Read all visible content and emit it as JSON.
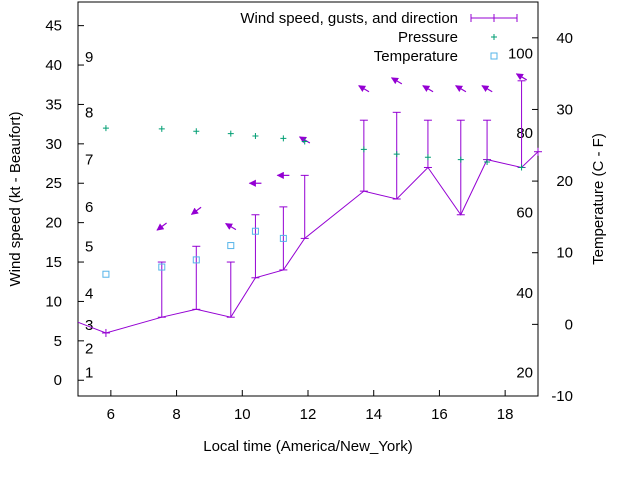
{
  "chart_data": {
    "type": "line",
    "xlabel": "Local time (America/New_York)",
    "ylabel_left": "Wind speed (kt - Beaufort)",
    "ylabel_right": "Temperature (C - F)",
    "xlim": [
      5,
      19
    ],
    "ylim_left": [
      -2,
      48
    ],
    "ylim_right": [
      -10,
      45
    ],
    "x_ticks": [
      6,
      8,
      10,
      12,
      14,
      16,
      18
    ],
    "y_left_ticks": [
      0,
      5,
      10,
      15,
      20,
      25,
      30,
      35,
      40,
      45
    ],
    "y_right_ticks": [
      -10,
      0,
      10,
      20,
      30,
      40
    ],
    "beaufort_labels": [
      {
        "text": "1",
        "at": 1
      },
      {
        "text": "2",
        "at": 4
      },
      {
        "text": "3",
        "at": 7
      },
      {
        "text": "4",
        "at": 11
      },
      {
        "text": "5",
        "at": 17
      },
      {
        "text": "6",
        "at": 22
      },
      {
        "text": "7",
        "at": 28
      },
      {
        "text": "8",
        "at": 34
      },
      {
        "text": "9",
        "at": 41
      }
    ],
    "fahrenheit_labels": [
      {
        "text": "20",
        "at": -6.7
      },
      {
        "text": "40",
        "at": 4.4
      },
      {
        "text": "60",
        "at": 15.6
      },
      {
        "text": "80",
        "at": 26.7
      },
      {
        "text": "100",
        "at": 37.8
      }
    ],
    "legend": [
      "Wind speed, gusts, and direction",
      "Pressure",
      "Temperature"
    ],
    "legend_position": "top-right",
    "grid": false,
    "colors": {
      "wind": "#9400d3",
      "pressure": "#009e73",
      "temperature": "#56b4e9"
    },
    "series": [
      {
        "name": "Wind speed, gusts, and direction",
        "x": [
          4.6,
          5.85,
          7.55,
          8.6,
          9.65,
          10.4,
          11.25,
          11.9,
          13.7,
          14.7,
          15.65,
          16.65,
          17.45,
          18.5,
          19.0
        ],
        "values": [
          8,
          6,
          8,
          9,
          8,
          13,
          14,
          18,
          24,
          23,
          27,
          21,
          28,
          27,
          29
        ],
        "gusts": [
          null,
          null,
          15,
          17,
          15,
          21,
          22,
          26,
          33,
          34,
          33,
          33,
          33,
          38,
          null
        ],
        "direction_arrows": [
          {
            "x": 7.55,
            "y": 19.5,
            "dir": "down-left"
          },
          {
            "x": 8.6,
            "y": 21.5,
            "dir": "down-left"
          },
          {
            "x": 9.65,
            "y": 19.5,
            "dir": "up-left"
          },
          {
            "x": 10.4,
            "y": 25,
            "dir": "left"
          },
          {
            "x": 11.25,
            "y": 26,
            "dir": "left"
          },
          {
            "x": 11.9,
            "y": 30.5,
            "dir": "up-left"
          },
          {
            "x": 13.7,
            "y": 37,
            "dir": "up-left"
          },
          {
            "x": 14.7,
            "y": 38,
            "dir": "up-left"
          },
          {
            "x": 15.65,
            "y": 37,
            "dir": "up-left"
          },
          {
            "x": 16.65,
            "y": 37,
            "dir": "up-left"
          },
          {
            "x": 17.45,
            "y": 37,
            "dir": "up-left"
          },
          {
            "x": 18.5,
            "y": 38.5,
            "dir": "up-left"
          }
        ]
      },
      {
        "name": "Pressure",
        "x": [
          5.85,
          7.55,
          8.6,
          9.65,
          10.4,
          11.25,
          11.9,
          13.7,
          14.7,
          15.65,
          16.65,
          17.45,
          18.5
        ],
        "values": [
          32,
          31.9,
          31.6,
          31.3,
          31.0,
          30.7,
          30.3,
          29.3,
          28.7,
          28.3,
          28.0,
          27.7,
          27.0
        ]
      },
      {
        "name": "Temperature",
        "x": [
          5.85,
          7.55,
          8.6,
          9.65,
          10.4,
          11.25
        ],
        "values": [
          7,
          8,
          9,
          11,
          13,
          12
        ]
      }
    ]
  }
}
